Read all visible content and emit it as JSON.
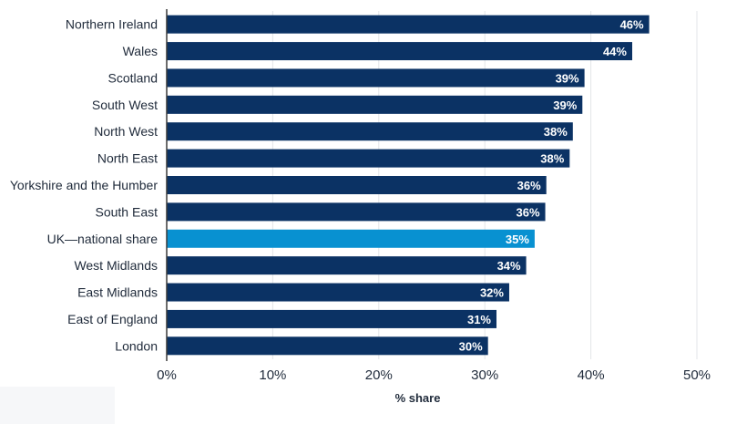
{
  "chart_data": {
    "type": "bar",
    "orientation": "horizontal",
    "categories": [
      "Northern Ireland",
      "Wales",
      "Scotland",
      "South West",
      "North West",
      "North East",
      "Yorkshire and the Humber",
      "South East",
      "UK—national share",
      "West Midlands",
      "East Midlands",
      "East of England",
      "London"
    ],
    "values": [
      45.5,
      43.9,
      39.4,
      39.2,
      38.3,
      38.0,
      35.8,
      35.7,
      34.7,
      33.9,
      32.3,
      31.1,
      30.3
    ],
    "value_labels": [
      "46%",
      "44%",
      "39%",
      "39%",
      "38%",
      "38%",
      "36%",
      "36%",
      "35%",
      "34%",
      "32%",
      "31%",
      "30%"
    ],
    "highlight_category": "UK—national share",
    "xlim": [
      0,
      50
    ],
    "x_ticks": [
      0,
      10,
      20,
      30,
      40,
      50
    ],
    "x_tick_labels": [
      "0%",
      "10%",
      "20%",
      "30%",
      "40%",
      "50%"
    ],
    "xlabel": "% share",
    "ylabel": "",
    "title": "",
    "grid": "vertical",
    "legend": "none",
    "colors": {
      "bar": "#0b3264",
      "highlight": "#0891d1",
      "grid": "#e3e5e8",
      "axis": "#3a3a3a"
    }
  }
}
